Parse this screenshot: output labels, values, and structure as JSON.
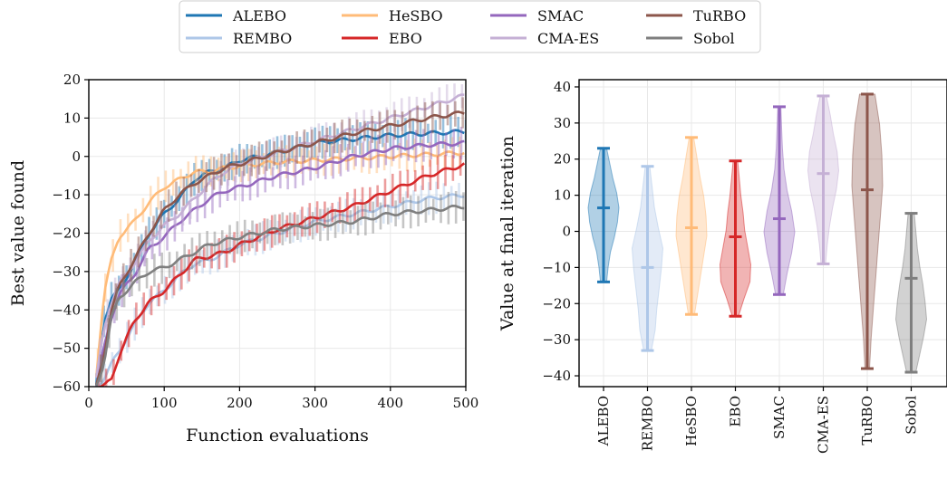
{
  "legend": {
    "placement": "top-center",
    "entries": [
      {
        "name": "ALEBO",
        "color": "#1f77b4"
      },
      {
        "name": "REMBO",
        "color": "#aec7e8"
      },
      {
        "name": "HeSBO",
        "color": "#ffbb78"
      },
      {
        "name": "EBO",
        "color": "#d62728"
      },
      {
        "name": "SMAC",
        "color": "#9467bd"
      },
      {
        "name": "CMA-ES",
        "color": "#c5b0d5"
      },
      {
        "name": "TuRBO",
        "color": "#8c564b"
      },
      {
        "name": "Sobol",
        "color": "#7f7f7f"
      }
    ]
  },
  "chart_data": [
    {
      "type": "line",
      "title": "",
      "xlabel": "Function evaluations",
      "ylabel": "Best value found",
      "xlim": [
        0,
        500
      ],
      "ylim": [
        -60,
        20
      ],
      "xticks": [
        0,
        100,
        200,
        300,
        400,
        500
      ],
      "yticks": [
        -60,
        -50,
        -40,
        -30,
        -20,
        -10,
        0,
        10,
        20
      ],
      "grid": true,
      "series": [
        {
          "name": "ALEBO",
          "color": "#1f77b4",
          "errorbars": true,
          "x": [
            10,
            20,
            30,
            40,
            60,
            80,
            100,
            120,
            140,
            160,
            180,
            200,
            250,
            300,
            350,
            400,
            450,
            500
          ],
          "y": [
            -60,
            -43,
            -37,
            -35,
            -28,
            -20,
            -15,
            -11,
            -6,
            -4,
            -3,
            -1,
            1,
            3.5,
            4.5,
            5.5,
            6,
            6.5
          ]
        },
        {
          "name": "REMBO",
          "color": "#aec7e8",
          "errorbars": true,
          "x": [
            10,
            20,
            30,
            40,
            60,
            80,
            100,
            120,
            140,
            160,
            180,
            200,
            250,
            300,
            350,
            400,
            450,
            500
          ],
          "y": [
            -60,
            -58,
            -54,
            -51,
            -44,
            -38,
            -35,
            -31,
            -28,
            -27,
            -25,
            -23,
            -20,
            -17,
            -15,
            -13,
            -11,
            -10
          ]
        },
        {
          "name": "HeSBO",
          "color": "#ffbb78",
          "errorbars": true,
          "x": [
            10,
            20,
            30,
            40,
            60,
            80,
            100,
            120,
            140,
            160,
            180,
            200,
            250,
            300,
            350,
            400,
            450,
            500
          ],
          "y": [
            -57,
            -36,
            -27,
            -21,
            -17,
            -12,
            -8,
            -6,
            -4,
            -4,
            -3,
            -2.5,
            -1.5,
            -1,
            -0.5,
            0,
            0.5,
            1
          ]
        },
        {
          "name": "EBO",
          "color": "#d62728",
          "errorbars": true,
          "x": [
            10,
            20,
            30,
            40,
            60,
            80,
            100,
            120,
            140,
            160,
            180,
            200,
            250,
            300,
            350,
            400,
            450,
            500
          ],
          "y": [
            -60,
            -60,
            -58,
            -52,
            -43,
            -38,
            -35,
            -31,
            -27,
            -26,
            -25,
            -23,
            -19,
            -16,
            -13,
            -9,
            -5,
            -2
          ]
        },
        {
          "name": "SMAC",
          "color": "#9467bd",
          "errorbars": true,
          "x": [
            10,
            20,
            30,
            40,
            60,
            80,
            100,
            120,
            140,
            160,
            180,
            200,
            250,
            300,
            350,
            400,
            450,
            500
          ],
          "y": [
            -60,
            -50,
            -42,
            -36,
            -31,
            -24,
            -21,
            -17,
            -14,
            -11,
            -9,
            -8,
            -5,
            -3,
            0,
            2,
            3,
            3.5
          ]
        },
        {
          "name": "CMA-ES",
          "color": "#c5b0d5",
          "errorbars": true,
          "x": [
            10,
            20,
            30,
            40,
            60,
            80,
            100,
            120,
            140,
            160,
            180,
            200,
            250,
            300,
            350,
            400,
            450,
            500
          ],
          "y": [
            -58,
            -45,
            -38,
            -33,
            -28,
            -22,
            -18,
            -15,
            -11,
            -7,
            -4,
            -2,
            1,
            4,
            7,
            10,
            13,
            16
          ]
        },
        {
          "name": "TuRBO",
          "color": "#8c564b",
          "errorbars": true,
          "x": [
            10,
            20,
            30,
            40,
            60,
            80,
            100,
            120,
            140,
            160,
            180,
            200,
            250,
            300,
            350,
            400,
            450,
            500
          ],
          "y": [
            -60,
            -52,
            -40,
            -34,
            -27,
            -20,
            -14,
            -10,
            -7,
            -5,
            -3,
            -2,
            1,
            3.5,
            6,
            8,
            10,
            11.5
          ]
        },
        {
          "name": "Sobol",
          "color": "#7f7f7f",
          "errorbars": true,
          "x": [
            10,
            20,
            30,
            40,
            60,
            80,
            100,
            120,
            140,
            160,
            180,
            200,
            250,
            300,
            350,
            400,
            450,
            500
          ],
          "y": [
            -60,
            -54,
            -42,
            -37,
            -33,
            -30,
            -29,
            -27,
            -25,
            -23,
            -22,
            -21,
            -19,
            -18,
            -17,
            -15,
            -14,
            -13
          ]
        }
      ]
    },
    {
      "type": "violin",
      "title": "",
      "xlabel": "",
      "ylabel": "Value at final iteration",
      "ylim": [
        -43,
        42
      ],
      "yticks": [
        -40,
        -30,
        -20,
        -10,
        0,
        10,
        20,
        30,
        40
      ],
      "categories": [
        "ALEBO",
        "REMBO",
        "HeSBO",
        "EBO",
        "SMAC",
        "CMA-ES",
        "TuRBO",
        "Sobol"
      ],
      "tick_label_rotation": 90,
      "grid": true,
      "series": [
        {
          "name": "ALEBO",
          "color": "#1f77b4",
          "min": -14,
          "max": 23,
          "mean": 6.5,
          "width": [
            0.2,
            0.3,
            0.45,
            0.7,
            0.9,
            1.0,
            0.85,
            0.6,
            0.4,
            0.2
          ]
        },
        {
          "name": "REMBO",
          "color": "#aec7e8",
          "min": -33,
          "max": 18,
          "mean": -10,
          "width": [
            0.25,
            0.5,
            0.6,
            0.75,
            0.9,
            1.0,
            0.7,
            0.45,
            0.3,
            0.15
          ]
        },
        {
          "name": "HeSBO",
          "color": "#ffbb78",
          "min": -23,
          "max": 26,
          "mean": 1,
          "width": [
            0.2,
            0.4,
            0.6,
            0.8,
            1.0,
            0.95,
            0.8,
            0.55,
            0.35,
            0.15
          ]
        },
        {
          "name": "EBO",
          "color": "#d62728",
          "min": -23.5,
          "max": 19.5,
          "mean": -1.5,
          "width": [
            0.2,
            0.55,
            0.95,
            1.0,
            0.8,
            0.6,
            0.5,
            0.35,
            0.25,
            0.15
          ]
        },
        {
          "name": "SMAC",
          "color": "#9467bd",
          "min": -17.5,
          "max": 34.5,
          "mean": 3.5,
          "width": [
            0.25,
            0.5,
            0.8,
            1.0,
            0.8,
            0.5,
            0.3,
            0.2,
            0.15,
            0.1
          ]
        },
        {
          "name": "CMA-ES",
          "color": "#c5b0d5",
          "min": -9,
          "max": 37.5,
          "mean": 16,
          "width": [
            0.15,
            0.25,
            0.4,
            0.6,
            0.85,
            1.0,
            0.9,
            0.65,
            0.45,
            0.2
          ]
        },
        {
          "name": "TuRBO",
          "color": "#8c564b",
          "min": -38,
          "max": 38,
          "mean": 11.5,
          "width": [
            0.15,
            0.25,
            0.4,
            0.55,
            0.7,
            0.85,
            1.0,
            0.95,
            0.8,
            0.5
          ]
        },
        {
          "name": "Sobol",
          "color": "#7f7f7f",
          "min": -39,
          "max": 5,
          "mean": -13,
          "width": [
            0.3,
            0.55,
            0.8,
            1.0,
            0.9,
            0.75,
            0.55,
            0.4,
            0.3,
            0.2
          ]
        }
      ]
    }
  ]
}
